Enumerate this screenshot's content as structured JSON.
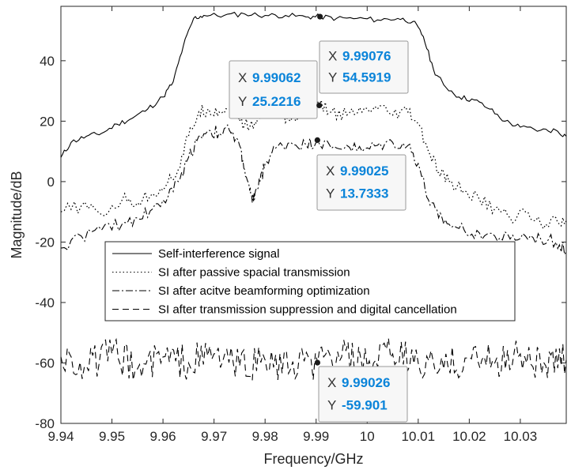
{
  "chart_data": {
    "type": "line",
    "title": "",
    "xlabel": "Frequency/GHz",
    "ylabel": "Magnitude/dB",
    "xlim": [
      9.94,
      10.039
    ],
    "ylim": [
      -80,
      58
    ],
    "xticks": [
      9.94,
      9.95,
      9.96,
      9.97,
      9.98,
      9.99,
      10.0,
      10.01,
      10.02,
      10.03
    ],
    "xtick_labels": [
      "9.94",
      "9.95",
      "9.96",
      "9.97",
      "9.98",
      "9.99",
      "10",
      "10.01",
      "10.02",
      "10.03"
    ],
    "yticks": [
      -80,
      -60,
      -40,
      -20,
      0,
      20,
      40
    ],
    "ytick_labels": [
      "-80",
      "-60",
      "-40",
      "-20",
      "0",
      "20",
      "40"
    ],
    "grid": false,
    "legend_location": "center",
    "series": [
      {
        "name": "Self-interference signal",
        "style": "solid",
        "points": [
          [
            9.94,
            8
          ],
          [
            9.942,
            13
          ],
          [
            9.945,
            15
          ],
          [
            9.948,
            16
          ],
          [
            9.951,
            19
          ],
          [
            9.954,
            21
          ],
          [
            9.957,
            24
          ],
          [
            9.96,
            28
          ],
          [
            9.962,
            33
          ],
          [
            9.964,
            45
          ],
          [
            9.966,
            54
          ],
          [
            9.968,
            55
          ],
          [
            9.972,
            55
          ],
          [
            9.976,
            55.5
          ],
          [
            9.98,
            55
          ],
          [
            9.984,
            55
          ],
          [
            9.988,
            54.5
          ],
          [
            9.9908,
            54.6
          ],
          [
            9.994,
            54
          ],
          [
            9.998,
            54
          ],
          [
            10.002,
            53.5
          ],
          [
            10.006,
            54
          ],
          [
            10.009,
            53
          ],
          [
            10.011,
            48
          ],
          [
            10.013,
            37
          ],
          [
            10.015,
            32
          ],
          [
            10.018,
            28
          ],
          [
            10.021,
            27
          ],
          [
            10.024,
            24
          ],
          [
            10.027,
            20
          ],
          [
            10.03,
            18
          ],
          [
            10.034,
            17
          ],
          [
            10.037,
            17
          ],
          [
            10.039,
            15
          ]
        ]
      },
      {
        "name": "SI after passive spacial transmission",
        "style": "dotted",
        "points": [
          [
            9.94,
            -10
          ],
          [
            9.944,
            -8
          ],
          [
            9.948,
            -11
          ],
          [
            9.952,
            -6
          ],
          [
            9.955,
            -7
          ],
          [
            9.958,
            -4
          ],
          [
            9.961,
            0
          ],
          [
            9.963,
            4
          ],
          [
            9.965,
            15
          ],
          [
            9.967,
            23
          ],
          [
            9.969,
            24
          ],
          [
            9.971,
            23
          ],
          [
            9.973,
            24
          ],
          [
            9.975,
            20
          ],
          [
            9.977,
            18
          ],
          [
            9.979,
            21
          ],
          [
            9.981,
            23
          ],
          [
            9.983,
            23
          ],
          [
            9.985,
            20
          ],
          [
            9.988,
            24
          ],
          [
            9.9906,
            25.2
          ],
          [
            9.993,
            23
          ],
          [
            9.996,
            22
          ],
          [
            9.999,
            23
          ],
          [
            10.002,
            24
          ],
          [
            10.005,
            22
          ],
          [
            10.008,
            23
          ],
          [
            10.01,
            19
          ],
          [
            10.012,
            10
          ],
          [
            10.014,
            3
          ],
          [
            10.016,
            0
          ],
          [
            10.019,
            -3
          ],
          [
            10.022,
            -6
          ],
          [
            10.025,
            -9
          ],
          [
            10.028,
            -12
          ],
          [
            10.031,
            -10
          ],
          [
            10.034,
            -14
          ],
          [
            10.037,
            -12
          ],
          [
            10.039,
            -13
          ]
        ]
      },
      {
        "name": "SI after acitve beamforming optimization",
        "style": "dashdot",
        "points": [
          [
            9.94,
            -22
          ],
          [
            9.944,
            -18
          ],
          [
            9.948,
            -16
          ],
          [
            9.952,
            -14
          ],
          [
            9.955,
            -12
          ],
          [
            9.958,
            -9
          ],
          [
            9.961,
            -5
          ],
          [
            9.963,
            0
          ],
          [
            9.965,
            8
          ],
          [
            9.967,
            15
          ],
          [
            9.969,
            17
          ],
          [
            9.971,
            16
          ],
          [
            9.973,
            17
          ],
          [
            9.975,
            12
          ],
          [
            9.976,
            4
          ],
          [
            9.977,
            -3
          ],
          [
            9.9775,
            -7
          ],
          [
            9.978,
            -4
          ],
          [
            9.979,
            0
          ],
          [
            9.98,
            6
          ],
          [
            9.982,
            11
          ],
          [
            9.985,
            13
          ],
          [
            9.988,
            12
          ],
          [
            9.9903,
            13.7
          ],
          [
            9.993,
            11
          ],
          [
            9.996,
            12
          ],
          [
            9.999,
            10
          ],
          [
            10.002,
            12
          ],
          [
            10.005,
            13
          ],
          [
            10.008,
            12
          ],
          [
            10.01,
            6
          ],
          [
            10.012,
            -6
          ],
          [
            10.014,
            -12
          ],
          [
            10.016,
            -14
          ],
          [
            10.019,
            -16
          ],
          [
            10.022,
            -17
          ],
          [
            10.025,
            -18
          ],
          [
            10.028,
            -19
          ],
          [
            10.031,
            -18
          ],
          [
            10.034,
            -19
          ],
          [
            10.037,
            -20
          ],
          [
            10.039,
            -23
          ]
        ]
      },
      {
        "name": "SI after transmission suppression and digital cancellation",
        "style": "dashed",
        "noise_mean_dB": -59.9,
        "noise_range_dB": [
          -70,
          -47
        ],
        "points": [
          [
            9.94,
            -58
          ],
          [
            9.945,
            -61
          ],
          [
            9.95,
            -57
          ],
          [
            9.955,
            -62
          ],
          [
            9.96,
            -58
          ],
          [
            9.965,
            -60
          ],
          [
            9.97,
            -57
          ],
          [
            9.975,
            -61
          ],
          [
            9.98,
            -59
          ],
          [
            9.985,
            -62
          ],
          [
            9.9903,
            -59.9
          ],
          [
            9.995,
            -58
          ],
          [
            10.0,
            -61
          ],
          [
            10.005,
            -57
          ],
          [
            10.01,
            -60
          ],
          [
            10.015,
            -62
          ],
          [
            10.02,
            -58
          ],
          [
            10.025,
            -60
          ],
          [
            10.03,
            -57
          ],
          [
            10.035,
            -61
          ],
          [
            10.039,
            -59
          ]
        ]
      }
    ],
    "datatips": [
      {
        "x_label": "X",
        "x_value": "9.99076",
        "y_label": "Y",
        "y_value": "54.5919",
        "x": 9.99076,
        "y": 54.5919
      },
      {
        "x_label": "X",
        "x_value": "9.99062",
        "y_label": "Y",
        "y_value": "25.2216",
        "x": 9.99062,
        "y": 25.2216
      },
      {
        "x_label": "X",
        "x_value": "9.99025",
        "y_label": "Y",
        "y_value": "13.7333",
        "x": 9.99025,
        "y": 13.7333
      },
      {
        "x_label": "X",
        "x_value": "9.99026",
        "y_label": "Y",
        "y_value": "-59.901",
        "x": 9.99026,
        "y": -59.901
      }
    ]
  }
}
